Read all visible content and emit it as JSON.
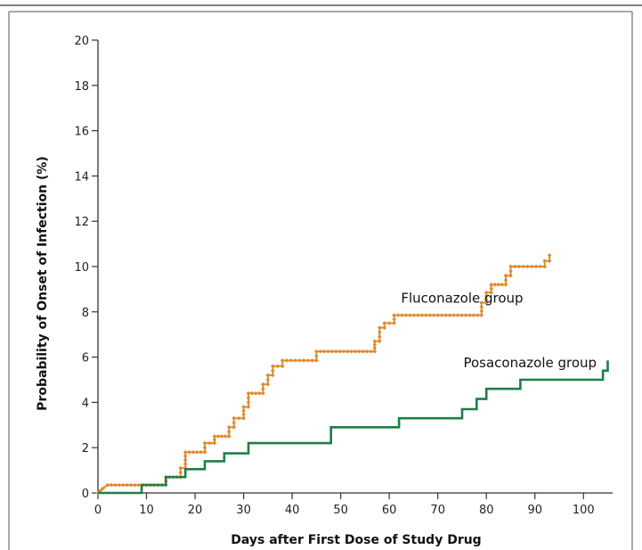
{
  "chart_data": {
    "type": "line",
    "title": "",
    "xlabel": "Days after First Dose of Study Drug",
    "ylabel": "Probability of Onset of Infection (%)",
    "xlim": [
      0,
      106
    ],
    "ylim": [
      0,
      20
    ],
    "x_ticks": [
      0,
      10,
      20,
      30,
      40,
      50,
      60,
      70,
      80,
      90,
      100
    ],
    "y_ticks": [
      0,
      2,
      4,
      6,
      8,
      10,
      12,
      14,
      16,
      18,
      20
    ],
    "grid": false,
    "legend": "none (direct labels on lines)",
    "series": [
      {
        "name": "Fluconazole group",
        "color": "#e08a2c",
        "marker": "small diamond dots along the step line",
        "label_at": [
          75,
          8.4
        ],
        "points": [
          [
            0,
            0
          ],
          [
            1,
            0.2
          ],
          [
            2,
            0.35
          ],
          [
            14,
            0.35
          ],
          [
            14,
            0.7
          ],
          [
            17,
            0.7
          ],
          [
            17,
            1.1
          ],
          [
            18,
            1.1
          ],
          [
            18,
            1.8
          ],
          [
            22,
            1.8
          ],
          [
            22,
            2.2
          ],
          [
            24,
            2.2
          ],
          [
            24,
            2.5
          ],
          [
            27,
            2.5
          ],
          [
            27,
            2.9
          ],
          [
            28,
            2.9
          ],
          [
            28,
            3.3
          ],
          [
            30,
            3.3
          ],
          [
            30,
            3.8
          ],
          [
            31,
            3.8
          ],
          [
            31,
            4.4
          ],
          [
            34,
            4.4
          ],
          [
            34,
            4.8
          ],
          [
            35,
            4.8
          ],
          [
            35,
            5.2
          ],
          [
            36,
            5.2
          ],
          [
            36,
            5.6
          ],
          [
            38,
            5.6
          ],
          [
            38,
            5.85
          ],
          [
            45,
            5.85
          ],
          [
            45,
            6.25
          ],
          [
            57,
            6.25
          ],
          [
            57,
            6.7
          ],
          [
            58,
            6.7
          ],
          [
            58,
            7.3
          ],
          [
            59,
            7.3
          ],
          [
            59,
            7.5
          ],
          [
            61,
            7.5
          ],
          [
            61,
            7.85
          ],
          [
            79,
            7.85
          ],
          [
            79,
            8.4
          ],
          [
            80,
            8.4
          ],
          [
            80,
            8.85
          ],
          [
            81,
            8.85
          ],
          [
            81,
            9.2
          ],
          [
            84,
            9.2
          ],
          [
            84,
            9.6
          ],
          [
            85,
            9.6
          ],
          [
            85,
            10.0
          ],
          [
            92,
            10.0
          ],
          [
            92,
            10.25
          ],
          [
            93,
            10.25
          ],
          [
            93,
            10.5
          ]
        ]
      },
      {
        "name": "Posaconazole group",
        "color": "#1e7f47",
        "marker": "none",
        "label_at": [
          89,
          5.55
        ],
        "points": [
          [
            0,
            0
          ],
          [
            9,
            0
          ],
          [
            9,
            0.35
          ],
          [
            14,
            0.35
          ],
          [
            14,
            0.7
          ],
          [
            18,
            0.7
          ],
          [
            18,
            1.05
          ],
          [
            22,
            1.05
          ],
          [
            22,
            1.4
          ],
          [
            26,
            1.4
          ],
          [
            26,
            1.75
          ],
          [
            31,
            1.75
          ],
          [
            31,
            2.2
          ],
          [
            48,
            2.2
          ],
          [
            48,
            2.9
          ],
          [
            62,
            2.9
          ],
          [
            62,
            3.3
          ],
          [
            75,
            3.3
          ],
          [
            75,
            3.7
          ],
          [
            78,
            3.7
          ],
          [
            78,
            4.15
          ],
          [
            80,
            4.15
          ],
          [
            80,
            4.6
          ],
          [
            87,
            4.6
          ],
          [
            87,
            5.0
          ],
          [
            104,
            5.0
          ],
          [
            104,
            5.4
          ],
          [
            105,
            5.4
          ],
          [
            105,
            5.85
          ]
        ]
      }
    ],
    "colors": {
      "axis": "#333333",
      "frame": "#555555",
      "background": "#ffffff"
    }
  }
}
